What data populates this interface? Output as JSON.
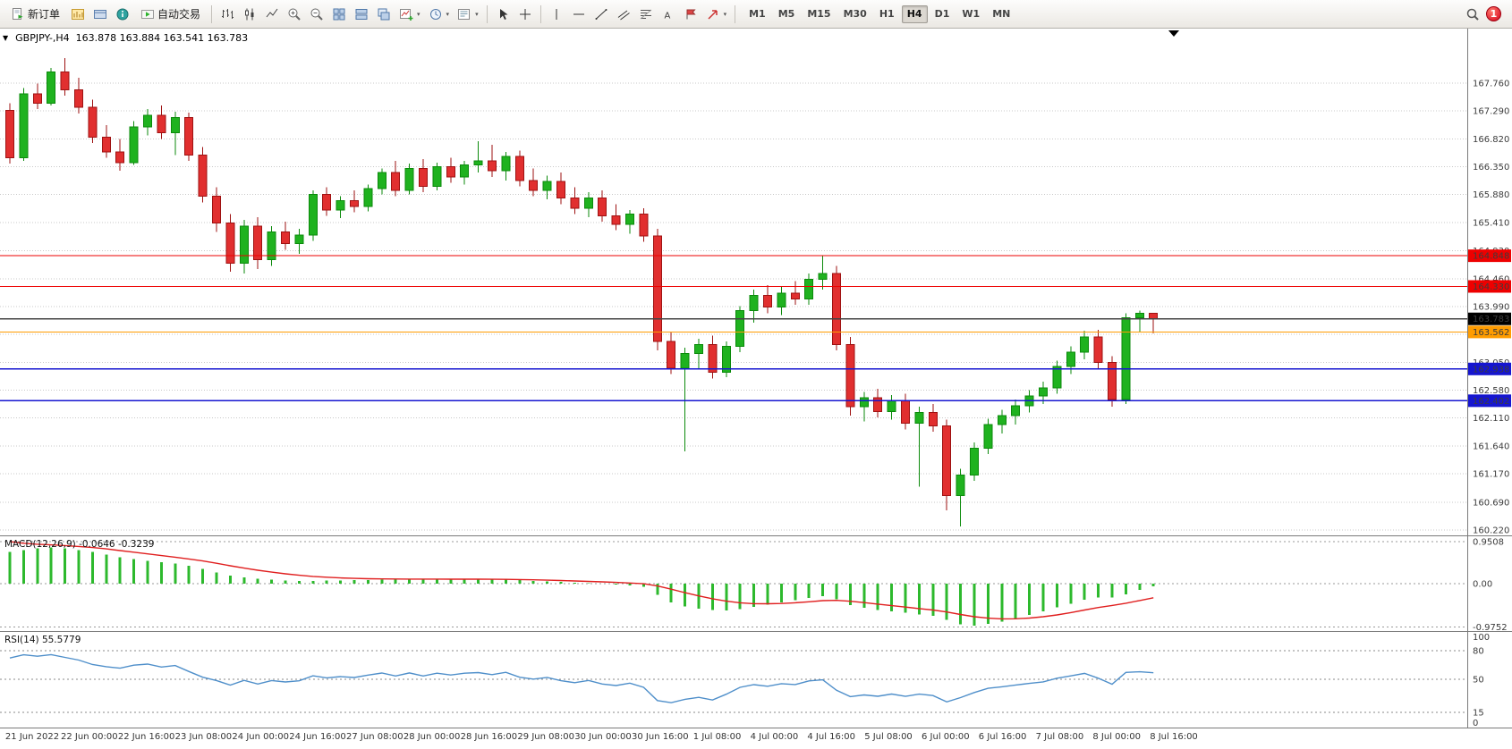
{
  "toolbar": {
    "new_order_label": "新订单",
    "auto_trading_label": "自动交易",
    "timeframes": [
      "M1",
      "M5",
      "M15",
      "M30",
      "H1",
      "H4",
      "D1",
      "W1",
      "MN"
    ],
    "active_timeframe": "H4",
    "notification_count": "1",
    "icons": [
      "new-order-icon",
      "charts-icon",
      "profiles-icon",
      "info-icon",
      "auto-trading-icon",
      "bar-chart-type-icon",
      "candlestick-type-icon",
      "line-chart-type-icon",
      "zoom-in-icon",
      "zoom-out-icon",
      "tile-windows-icon",
      "arrange-windows-icon",
      "cascade-windows-icon",
      "new-chart-icon",
      "periods-clock-icon",
      "templates-icon",
      "cursor-tool-icon",
      "crosshair-tool-icon",
      "vertical-line-tool-icon",
      "horizontal-line-tool-icon",
      "trendline-tool-icon",
      "channel-tool-icon",
      "fibonacci-tool-icon",
      "text-tool-icon",
      "label-tool-icon",
      "arrows-tool-icon",
      "search-icon"
    ]
  },
  "chart": {
    "symbol_title": "GBPJPY-,H4",
    "ohlc": "163.878 163.884 163.541 163.783",
    "ymax": 168.68,
    "ymin": 160.13,
    "colors": {
      "up": "#1fb21f",
      "up_border": "#0b8a0b",
      "down": "#e12f2f",
      "down_border": "#9e1212",
      "grid": "#c8c8c8"
    },
    "y_axis_labels": [
      "167.760",
      "167.290",
      "166.820",
      "166.350",
      "165.880",
      "165.410",
      "164.930",
      "164.460",
      "163.990",
      "163.520",
      "163.050",
      "162.580",
      "162.110",
      "161.640",
      "161.170",
      "160.690",
      "160.220"
    ],
    "hlines": [
      {
        "label": "164.848",
        "price": 164.848,
        "color": "#ee0000"
      },
      {
        "label": "164.330",
        "price": 164.33,
        "color": "#ee0000"
      },
      {
        "label": "163.783",
        "price": 163.783,
        "color": "#444444",
        "badge": "#000000"
      },
      {
        "label": "163.562",
        "price": 163.562,
        "color": "#ff9c00"
      },
      {
        "label": "162.938",
        "price": 162.938,
        "color": "#1515d0"
      },
      {
        "label": "162.402",
        "price": 162.402,
        "color": "#1515d0"
      }
    ],
    "candles": [
      [
        167.3,
        167.42,
        166.4,
        166.5
      ],
      [
        166.5,
        167.68,
        166.45,
        167.58
      ],
      [
        167.58,
        167.75,
        167.32,
        167.42
      ],
      [
        167.42,
        168.02,
        167.38,
        167.95
      ],
      [
        167.95,
        168.18,
        167.55,
        167.65
      ],
      [
        167.65,
        167.85,
        167.25,
        167.35
      ],
      [
        167.35,
        167.48,
        166.75,
        166.85
      ],
      [
        166.85,
        167.05,
        166.5,
        166.6
      ],
      [
        166.6,
        166.82,
        166.28,
        166.42
      ],
      [
        166.42,
        167.12,
        166.38,
        167.02
      ],
      [
        167.02,
        167.32,
        166.88,
        167.22
      ],
      [
        167.22,
        167.38,
        166.82,
        166.92
      ],
      [
        166.92,
        167.28,
        166.55,
        167.18
      ],
      [
        167.18,
        167.26,
        166.45,
        166.55
      ],
      [
        166.55,
        166.68,
        165.75,
        165.85
      ],
      [
        165.85,
        166.0,
        165.25,
        165.4
      ],
      [
        165.4,
        165.55,
        164.58,
        164.72
      ],
      [
        164.72,
        165.45,
        164.55,
        165.35
      ],
      [
        165.35,
        165.5,
        164.62,
        164.78
      ],
      [
        164.78,
        165.35,
        164.68,
        165.25
      ],
      [
        165.25,
        165.42,
        164.95,
        165.05
      ],
      [
        165.05,
        165.3,
        164.88,
        165.2
      ],
      [
        165.2,
        165.95,
        165.1,
        165.88
      ],
      [
        165.88,
        166.0,
        165.52,
        165.62
      ],
      [
        165.62,
        165.85,
        165.48,
        165.78
      ],
      [
        165.78,
        165.95,
        165.58,
        165.68
      ],
      [
        165.68,
        166.05,
        165.6,
        165.98
      ],
      [
        165.98,
        166.32,
        165.88,
        166.25
      ],
      [
        166.25,
        166.45,
        165.85,
        165.95
      ],
      [
        165.95,
        166.4,
        165.88,
        166.32
      ],
      [
        166.32,
        166.48,
        165.92,
        166.02
      ],
      [
        166.02,
        166.42,
        165.95,
        166.35
      ],
      [
        166.35,
        166.5,
        166.08,
        166.18
      ],
      [
        166.18,
        166.45,
        166.05,
        166.38
      ],
      [
        166.38,
        166.78,
        166.25,
        166.45
      ],
      [
        166.45,
        166.72,
        166.18,
        166.28
      ],
      [
        166.28,
        166.6,
        166.12,
        166.52
      ],
      [
        166.52,
        166.62,
        166.02,
        166.12
      ],
      [
        166.12,
        166.32,
        165.85,
        165.95
      ],
      [
        165.95,
        166.2,
        165.8,
        166.1
      ],
      [
        166.1,
        166.25,
        165.72,
        165.82
      ],
      [
        165.82,
        166.0,
        165.55,
        165.65
      ],
      [
        165.65,
        165.92,
        165.5,
        165.82
      ],
      [
        165.82,
        165.95,
        165.42,
        165.52
      ],
      [
        165.52,
        165.72,
        165.28,
        165.38
      ],
      [
        165.38,
        165.62,
        165.22,
        165.55
      ],
      [
        165.55,
        165.65,
        165.08,
        165.18
      ],
      [
        165.18,
        165.3,
        163.25,
        163.4
      ],
      [
        163.4,
        163.55,
        162.85,
        162.95
      ],
      [
        162.95,
        163.3,
        161.55,
        163.2
      ],
      [
        163.2,
        163.45,
        162.95,
        163.35
      ],
      [
        163.35,
        163.5,
        162.78,
        162.88
      ],
      [
        162.88,
        163.4,
        162.8,
        163.32
      ],
      [
        163.32,
        164.0,
        163.22,
        163.92
      ],
      [
        163.92,
        164.28,
        163.72,
        164.18
      ],
      [
        164.18,
        164.35,
        163.88,
        163.98
      ],
      [
        163.98,
        164.32,
        163.85,
        164.22
      ],
      [
        164.22,
        164.42,
        164.02,
        164.12
      ],
      [
        164.12,
        164.55,
        164.02,
        164.45
      ],
      [
        164.45,
        164.85,
        164.28,
        164.55
      ],
      [
        164.55,
        164.68,
        163.25,
        163.35
      ],
      [
        163.35,
        163.48,
        162.15,
        162.3
      ],
      [
        162.3,
        162.55,
        162.05,
        162.45
      ],
      [
        162.45,
        162.6,
        162.12,
        162.22
      ],
      [
        162.22,
        162.5,
        162.08,
        162.4
      ],
      [
        162.4,
        162.52,
        161.92,
        162.02
      ],
      [
        162.02,
        162.3,
        160.95,
        162.2
      ],
      [
        162.2,
        162.35,
        161.88,
        161.98
      ],
      [
        161.98,
        162.08,
        160.55,
        160.8
      ],
      [
        160.8,
        161.25,
        160.28,
        161.15
      ],
      [
        161.15,
        161.7,
        161.05,
        161.6
      ],
      [
        161.6,
        162.1,
        161.5,
        162.0
      ],
      [
        162.0,
        162.25,
        161.85,
        162.15
      ],
      [
        162.15,
        162.42,
        162.0,
        162.32
      ],
      [
        162.32,
        162.58,
        162.2,
        162.48
      ],
      [
        162.48,
        162.72,
        162.35,
        162.62
      ],
      [
        162.62,
        163.08,
        162.52,
        162.98
      ],
      [
        162.98,
        163.32,
        162.85,
        163.22
      ],
      [
        163.22,
        163.58,
        163.1,
        163.48
      ],
      [
        163.48,
        163.6,
        162.95,
        163.05
      ],
      [
        163.05,
        163.15,
        162.3,
        162.42
      ],
      [
        162.42,
        163.88,
        162.35,
        163.8
      ],
      [
        163.8,
        163.92,
        163.55,
        163.88
      ],
      [
        163.878,
        163.884,
        163.541,
        163.783
      ]
    ]
  },
  "macd": {
    "label": "MACD(12,26,9) -0.0646 -0.3239",
    "axis_labels": [
      "0.9508",
      "0.00",
      "-0.9752"
    ],
    "hist_color": "#2db92d",
    "signal_color": "#e01f1f",
    "signal_seed": 0.9508,
    "hist": [
      0.72,
      0.76,
      0.8,
      0.82,
      0.8,
      0.76,
      0.72,
      0.66,
      0.6,
      0.56,
      0.52,
      0.48,
      0.45,
      0.4,
      0.33,
      0.25,
      0.18,
      0.14,
      0.11,
      0.09,
      0.07,
      0.06,
      0.06,
      0.07,
      0.07,
      0.08,
      0.08,
      0.09,
      0.09,
      0.1,
      0.1,
      0.1,
      0.1,
      0.1,
      0.1,
      0.09,
      0.09,
      0.08,
      0.06,
      0.05,
      0.04,
      0.02,
      0.01,
      0.0,
      -0.02,
      -0.04,
      -0.07,
      -0.25,
      -0.42,
      -0.52,
      -0.57,
      -0.6,
      -0.61,
      -0.58,
      -0.53,
      -0.47,
      -0.42,
      -0.37,
      -0.32,
      -0.28,
      -0.35,
      -0.48,
      -0.55,
      -0.6,
      -0.63,
      -0.66,
      -0.7,
      -0.73,
      -0.82,
      -0.92,
      -0.95,
      -0.91,
      -0.86,
      -0.79,
      -0.71,
      -0.63,
      -0.54,
      -0.45,
      -0.36,
      -0.31,
      -0.31,
      -0.24,
      -0.14,
      -0.0646
    ]
  },
  "rsi": {
    "label": "RSI(14) 55.5779",
    "axis_labels": [
      "100",
      "80",
      "50",
      "15",
      "0"
    ],
    "levels": [
      80,
      50,
      15
    ],
    "line_color": "#4f8fca"
  },
  "time_axis": {
    "labels": [
      "21 Jun 2022",
      "22 Jun 00:00",
      "22 Jun 16:00",
      "23 Jun 08:00",
      "24 Jun 00:00",
      "24 Jun 16:00",
      "27 Jun 08:00",
      "28 Jun 00:00",
      "28 Jun 16:00",
      "29 Jun 08:00",
      "30 Jun 00:00",
      "30 Jun 16:00",
      "1 Jul 08:00",
      "4 Jul 00:00",
      "4 Jul 16:00",
      "5 Jul 08:00",
      "6 Jul 00:00",
      "6 Jul 16:00",
      "7 Jul 08:00",
      "8 Jul 00:00",
      "8 Jul 16:00"
    ]
  }
}
